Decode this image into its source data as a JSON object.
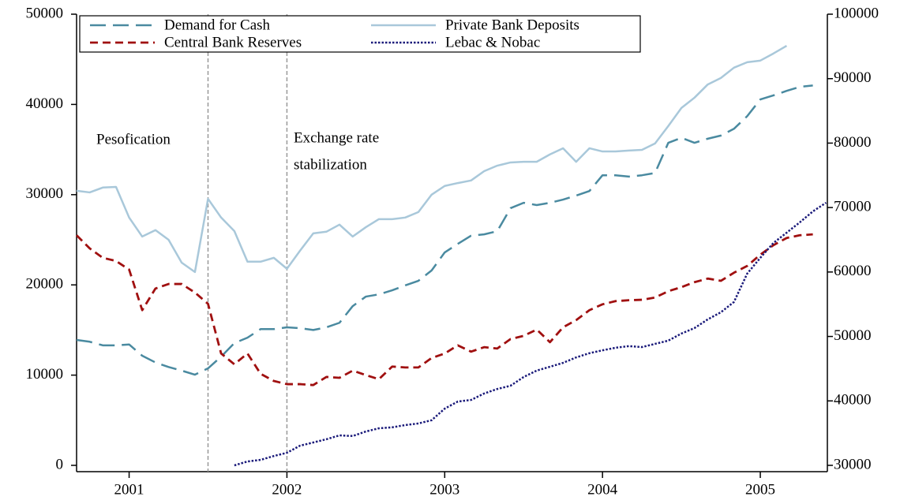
{
  "chart_data": {
    "type": "line",
    "x": [
      2000.667,
      2000.75,
      2000.833,
      2000.917,
      2001,
      2001.083,
      2001.167,
      2001.25,
      2001.333,
      2001.417,
      2001.5,
      2001.583,
      2001.667,
      2001.75,
      2001.833,
      2001.917,
      2002,
      2002.083,
      2002.167,
      2002.25,
      2002.333,
      2002.417,
      2002.5,
      2002.583,
      2002.667,
      2002.75,
      2002.833,
      2002.917,
      2003,
      2003.083,
      2003.167,
      2003.25,
      2003.333,
      2003.417,
      2003.5,
      2003.583,
      2003.667,
      2003.75,
      2003.833,
      2003.917,
      2004,
      2004.083,
      2004.167,
      2004.25,
      2004.333,
      2004.417,
      2004.5,
      2004.583,
      2004.667,
      2004.75,
      2004.833,
      2004.917,
      2005,
      2005.083,
      2005.167,
      2005.25,
      2005.333,
      2005.417
    ],
    "xlim": [
      2000.667,
      2005.425
    ],
    "xticks": [
      2001,
      2002,
      2003,
      2004,
      2005
    ],
    "ylim": [
      0,
      50000
    ],
    "yticks": [
      0,
      10000,
      20000,
      30000,
      40000,
      50000
    ],
    "y2lim": [
      30000,
      100000
    ],
    "y2ticks": [
      30000,
      40000,
      50000,
      60000,
      70000,
      80000,
      90000,
      100000
    ],
    "vlines": [
      2001.5,
      2002
    ],
    "annotations": [
      "Pesofication",
      "Exchange rate",
      "stabilization"
    ],
    "legend": "top-left",
    "series": [
      {
        "name": "Demand for Cash",
        "color": "#4a8aa0",
        "line_style": "long-dash",
        "values": [
          13900,
          13700,
          13300,
          13300,
          13400,
          12150,
          11400,
          10900,
          10500,
          10050,
          10750,
          12050,
          13550,
          14150,
          15100,
          15100,
          15300,
          15200,
          15000,
          15300,
          15800,
          17650,
          18700,
          18950,
          19400,
          19950,
          20450,
          21600,
          23600,
          24550,
          25450,
          25600,
          25950,
          28500,
          29100,
          28850,
          29100,
          29450,
          29900,
          30400,
          32150,
          32150,
          32000,
          32150,
          32400,
          35750,
          36300,
          35750,
          36200,
          36550,
          37300,
          38700,
          40550,
          41000,
          41500,
          41950,
          42100,
          null
        ]
      },
      {
        "name": "Private Bank Deposits",
        "color": "#a9c8da",
        "line_style": "solid",
        "axis": "y2",
        "values": [
          72600,
          72350,
          73100,
          73200,
          68450,
          65500,
          66500,
          65000,
          61450,
          60000,
          71350,
          68450,
          66350,
          61600,
          61600,
          62200,
          60500,
          63300,
          66000,
          66250,
          67350,
          65500,
          66950,
          68200,
          68200,
          68450,
          69300,
          72000,
          73350,
          73800,
          74200,
          75650,
          76500,
          77000,
          77100,
          77100,
          78250,
          79200,
          77100,
          79200,
          78700,
          78700,
          78850,
          78950,
          79950,
          82650,
          85450,
          87050,
          89100,
          90100,
          91700,
          92550,
          92800,
          93900,
          95100,
          null,
          null,
          null
        ]
      },
      {
        "name": "Central Bank Reserves",
        "color": "#a01010",
        "line_style": "dash",
        "values": [
          25500,
          24050,
          23000,
          22650,
          21700,
          17200,
          19600,
          20100,
          20100,
          19150,
          17900,
          12400,
          11200,
          12400,
          10150,
          9350,
          9000,
          9000,
          8900,
          9800,
          9700,
          10500,
          10000,
          9550,
          10950,
          10850,
          10850,
          11900,
          12400,
          13300,
          12600,
          13100,
          12950,
          14000,
          14350,
          15050,
          13650,
          15300,
          16100,
          17200,
          17850,
          18200,
          18300,
          18350,
          18600,
          19300,
          19750,
          20300,
          20700,
          20450,
          21350,
          22100,
          23350,
          24400,
          25200,
          25500,
          25600,
          null
        ]
      },
      {
        "name": "Lebac & Nobac",
        "color": "#1a1a7a",
        "line_style": "dot",
        "axis": "y2",
        "values": [
          null,
          null,
          null,
          null,
          null,
          null,
          null,
          null,
          null,
          null,
          null,
          null,
          30000,
          30600,
          30850,
          31450,
          31950,
          33050,
          33550,
          34050,
          34650,
          34550,
          35250,
          35750,
          35900,
          36250,
          36500,
          37000,
          38800,
          39900,
          40150,
          41150,
          41850,
          42350,
          43700,
          44700,
          45300,
          45900,
          46750,
          47400,
          47850,
          48250,
          48500,
          48350,
          48850,
          49350,
          50450,
          51300,
          52650,
          53750,
          55350,
          59750,
          62200,
          64500,
          66100,
          67700,
          69400,
          70750
        ]
      }
    ]
  }
}
